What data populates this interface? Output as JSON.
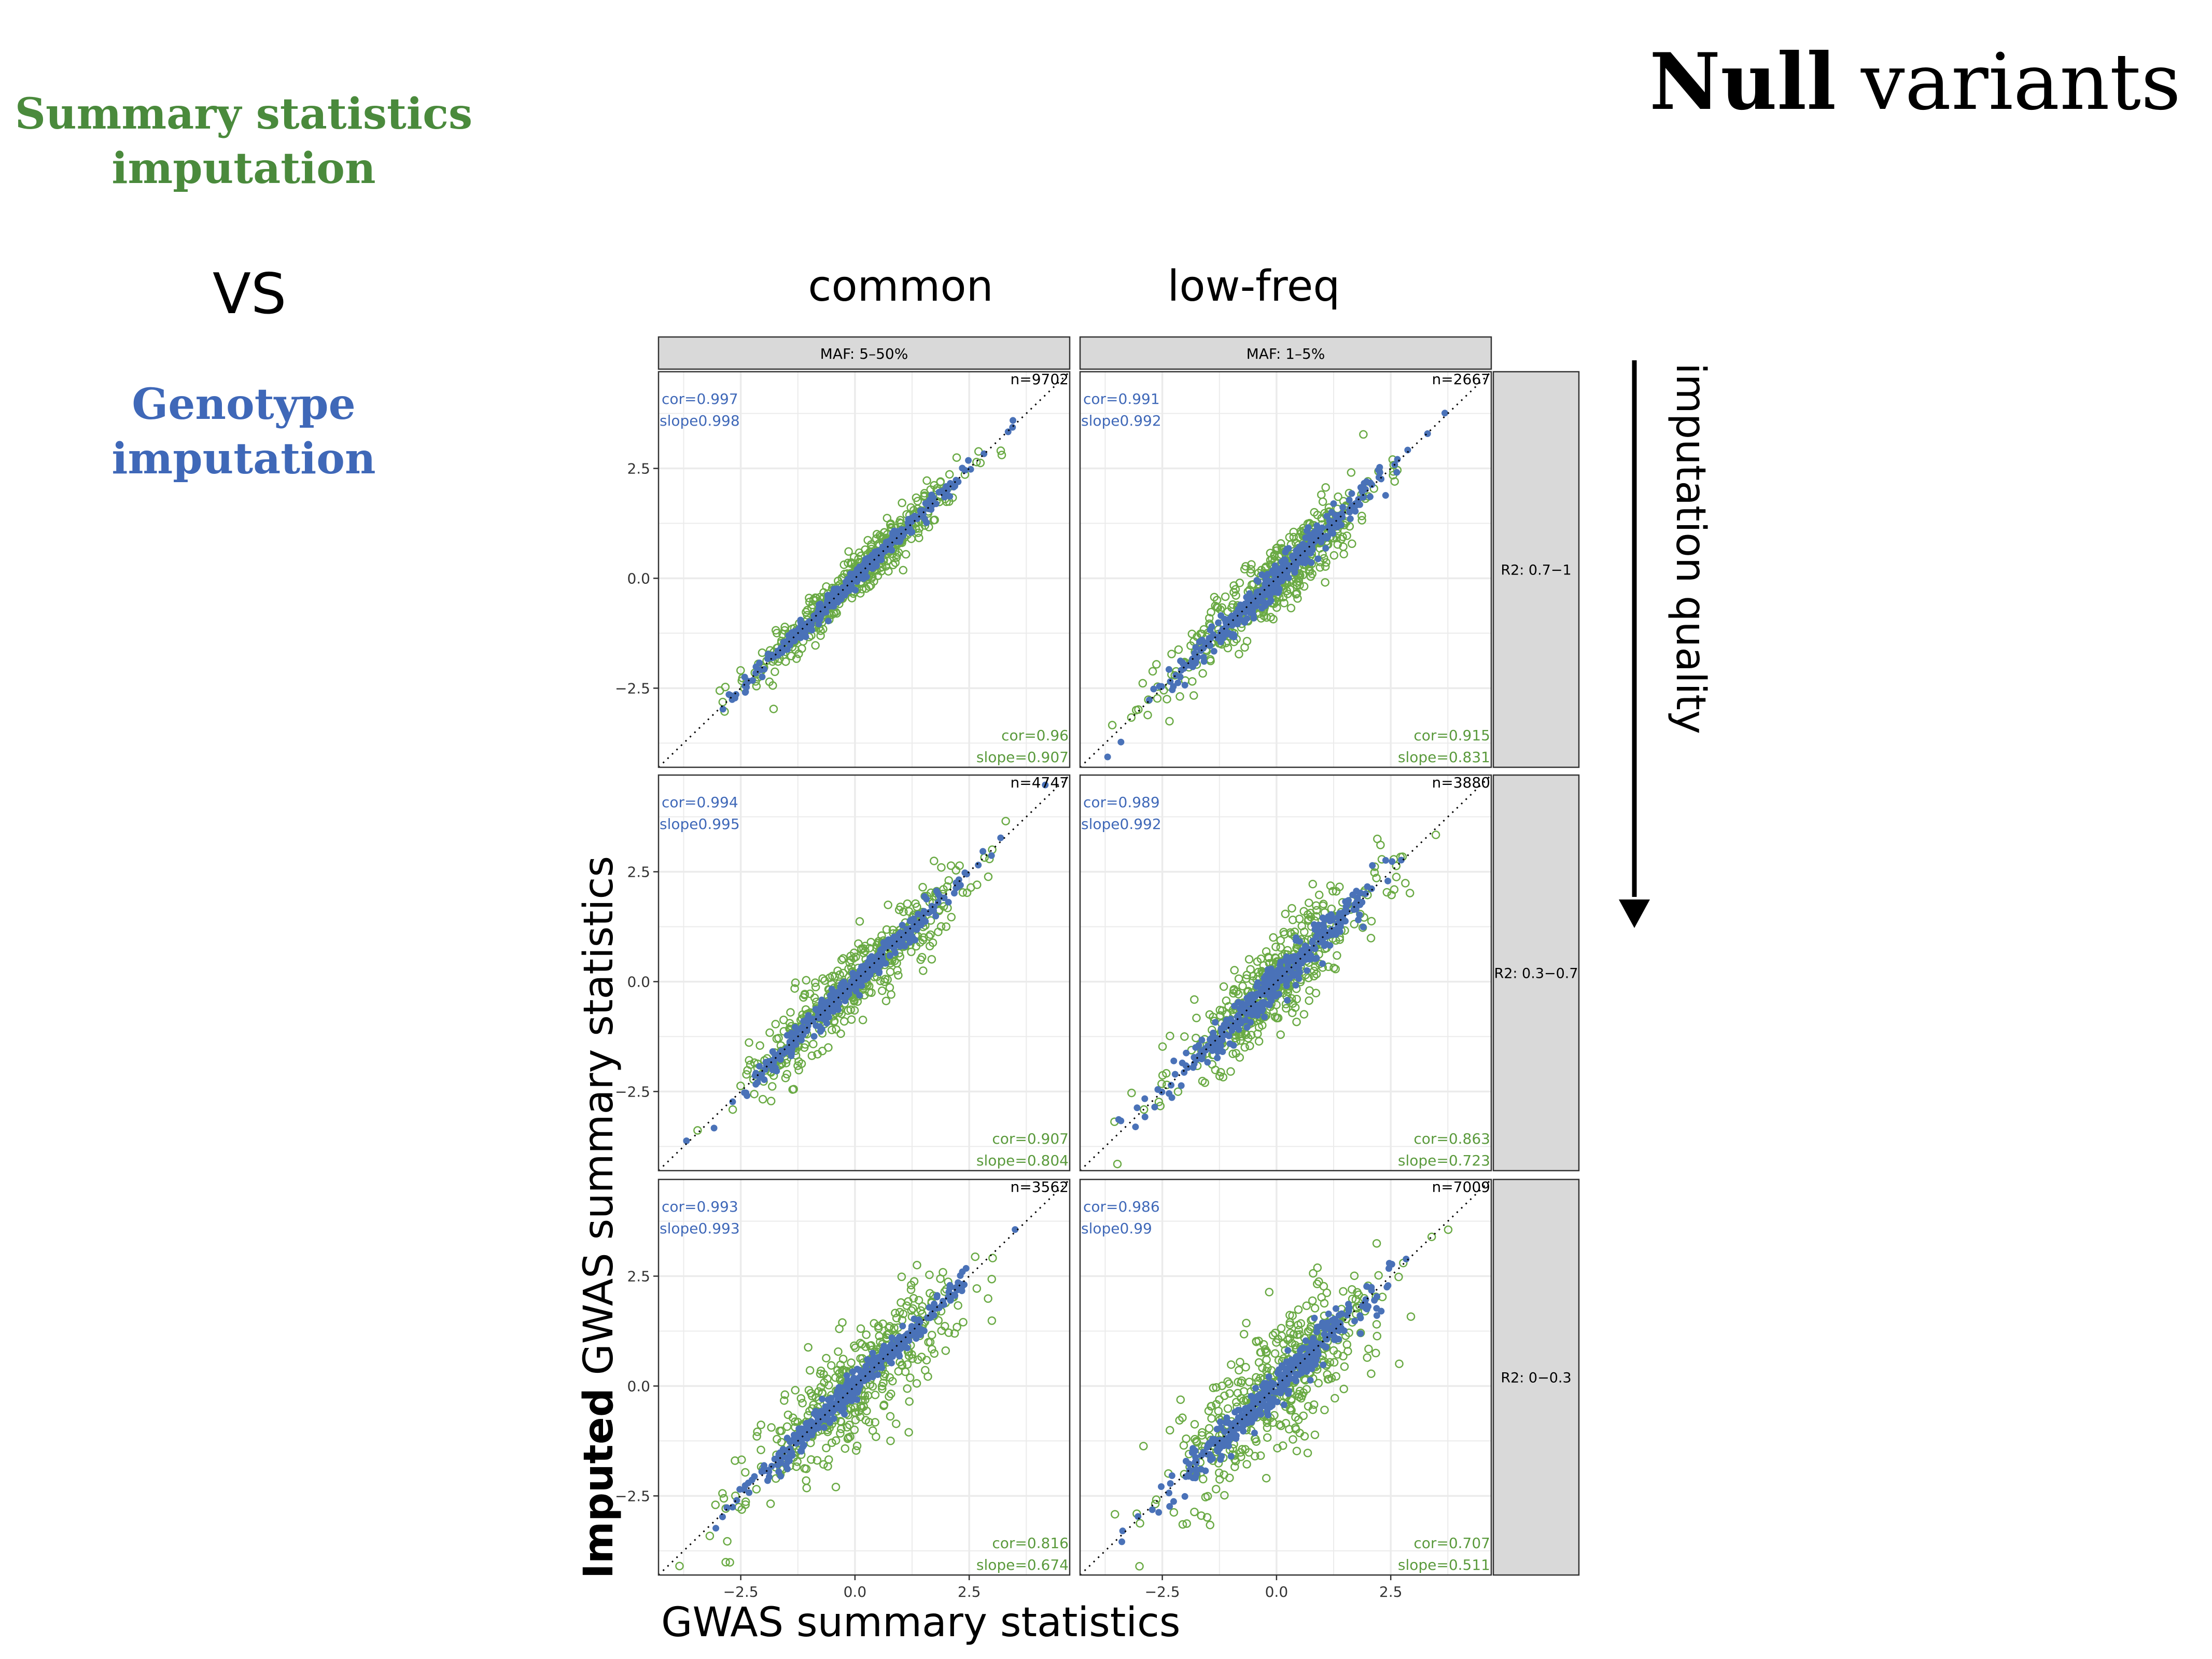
{
  "slide": {
    "title_bold": "Null",
    "title_rest": " variants",
    "left_label_green": [
      "Summary statistics",
      "imputation"
    ],
    "vs": "VS",
    "left_label_blue": [
      "Genotype",
      "imputation"
    ],
    "col_head_common": "common",
    "col_head_lowfreq": "low-freq",
    "quality_label": "imputation quality",
    "y_title_bold": "Imputed",
    "y_title_rest": " GWAS summary statistics",
    "x_title": "GWAS summary statistics"
  },
  "colors": {
    "green": "#6aaa44",
    "blue": "#4a72b8",
    "strip": "#d9d9d9",
    "grid": "#ebebeb"
  },
  "chart_data": {
    "type": "scatter",
    "col_strips": [
      "MAF: 5–50%",
      "MAF: 1–5%"
    ],
    "row_strips": [
      "R2: 0.7−1",
      "R2: 0.3−0.7",
      "R2: 0−0.3"
    ],
    "xlim": [
      -4.3,
      4.7
    ],
    "ylim": [
      -4.3,
      4.7
    ],
    "xticks": [
      -2.5,
      0.0,
      2.5
    ],
    "xtick_labels": [
      "−2.5",
      "0.0",
      "2.5"
    ],
    "yticks": [
      -2.5,
      0.0,
      2.5
    ],
    "ytick_labels": [
      "−2.5",
      "0.0",
      "2.5"
    ],
    "reference_line": "y = x",
    "series": [
      {
        "name": "Summary statistics imputation",
        "marker": "open circle",
        "color": "#6aaa44"
      },
      {
        "name": "Genotype imputation",
        "marker": "filled circle",
        "color": "#4a72b8"
      }
    ],
    "panels": [
      {
        "row": 0,
        "col": 0,
        "n": "n=9702",
        "blue_cor": "cor=0.997",
        "blue_slope": "slope0.998",
        "green_cor": "cor=0.96",
        "green_slope": "slope=0.907"
      },
      {
        "row": 0,
        "col": 1,
        "n": "n=2667",
        "blue_cor": "cor=0.991",
        "blue_slope": "slope0.992",
        "green_cor": "cor=0.915",
        "green_slope": "slope=0.831"
      },
      {
        "row": 1,
        "col": 0,
        "n": "n=4747",
        "blue_cor": "cor=0.994",
        "blue_slope": "slope0.995",
        "green_cor": "cor=0.907",
        "green_slope": "slope=0.804"
      },
      {
        "row": 1,
        "col": 1,
        "n": "n=3880",
        "blue_cor": "cor=0.989",
        "blue_slope": "slope0.992",
        "green_cor": "cor=0.863",
        "green_slope": "slope=0.723"
      },
      {
        "row": 2,
        "col": 0,
        "n": "n=3562",
        "blue_cor": "cor=0.993",
        "blue_slope": "slope0.993",
        "green_cor": "cor=0.816",
        "green_slope": "slope=0.674"
      },
      {
        "row": 2,
        "col": 1,
        "n": "n=7009",
        "blue_cor": "cor=0.986",
        "blue_slope": "slope0.99",
        "green_cor": "cor=0.707",
        "green_slope": "slope=0.511"
      }
    ]
  }
}
